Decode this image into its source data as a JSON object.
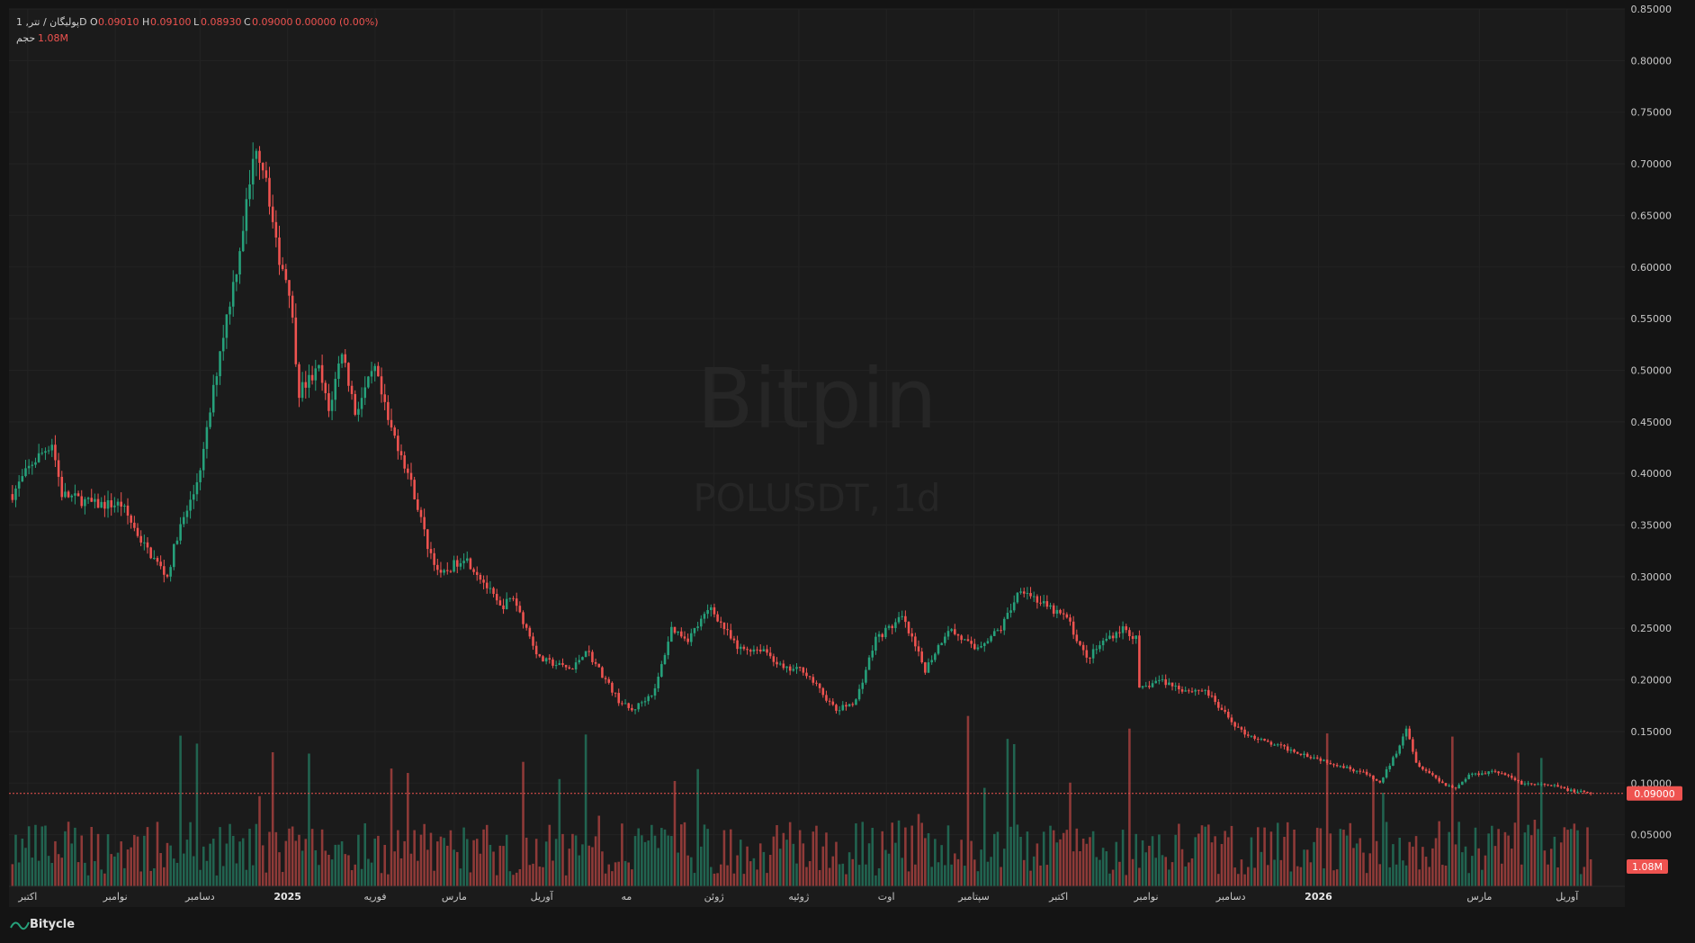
{
  "header": {
    "symbol_line": "پولیگان / تتر, 1D",
    "ohlc": {
      "o_label": "O",
      "o_value": "0.09010",
      "h_label": "H",
      "h_value": "0.09100",
      "l_label": "L",
      "l_value": "0.08930",
      "c_label": "C",
      "c_value": "0.09000",
      "change": "0.00000 (0.00%)"
    },
    "volume_label": "حجم",
    "volume_value": "1.08M"
  },
  "watermark": {
    "brand": "Bitpin",
    "symbol": "POLUSDT, 1d"
  },
  "footer": {
    "brand": "Bitycle"
  },
  "colors": {
    "background": "#141414",
    "up": "#26a17b",
    "down": "#ef5350",
    "grid": "#232323",
    "text": "#c8c8c8"
  },
  "price_axis": {
    "ticks": [
      "0.85000",
      "0.80000",
      "0.75000",
      "0.70000",
      "0.65000",
      "0.60000",
      "0.55000",
      "0.50000",
      "0.45000",
      "0.40000",
      "0.35000",
      "0.30000",
      "0.25000",
      "0.20000",
      "0.15000",
      "0.10000",
      "0.05000"
    ],
    "last_price_label": "0.09000",
    "volume_label": "1.08M"
  },
  "time_axis": {
    "labels": [
      "اکتبر",
      "نوامبر",
      "دسامبر",
      "2025",
      "فوریه",
      "مارس",
      "آوریل",
      "مه",
      "ژوئن",
      "ژوئیه",
      "اوت",
      "سپتامبر",
      "اکتبر",
      "نوامبر",
      "دسامبر",
      "2026",
      "مارس",
      "آوریل"
    ]
  },
  "chart_data": {
    "type": "candlestick",
    "symbol": "POLUSDT",
    "interval": "1d",
    "ylim": [
      0.0,
      0.85
    ],
    "last_close": 0.09,
    "volume_last": "1.08M",
    "grid": true,
    "daily_path": {
      "month_index_start": [
        "Sep-2024 end",
        "Oct-2024",
        "Nov-2024",
        "Dec-2024",
        "Jan-2025",
        "Feb-2025",
        "Mar-2025",
        "Apr-2025",
        "May-2025",
        "Jun-2025",
        "Jul-2025",
        "Aug-2025",
        "Sep-2025",
        "Oct-2025",
        "Nov-2025",
        "Dec-2025",
        "Jan-2026",
        "Feb-2026",
        "Mar-2026",
        "Apr-2026"
      ],
      "anchors": [
        [
          0,
          0.38
        ],
        [
          6,
          0.41
        ],
        [
          12,
          0.43
        ],
        [
          15,
          0.38
        ],
        [
          25,
          0.37
        ],
        [
          33,
          0.37
        ],
        [
          40,
          0.33
        ],
        [
          47,
          0.3
        ],
        [
          50,
          0.34
        ],
        [
          55,
          0.38
        ],
        [
          58,
          0.42
        ],
        [
          63,
          0.52
        ],
        [
          68,
          0.6
        ],
        [
          72,
          0.68
        ],
        [
          74,
          0.72
        ],
        [
          77,
          0.69
        ],
        [
          80,
          0.62
        ],
        [
          84,
          0.58
        ],
        [
          87,
          0.48
        ],
        [
          93,
          0.5
        ],
        [
          96,
          0.46
        ],
        [
          100,
          0.52
        ],
        [
          104,
          0.46
        ],
        [
          110,
          0.5
        ],
        [
          114,
          0.45
        ],
        [
          118,
          0.42
        ],
        [
          122,
          0.38
        ],
        [
          126,
          0.33
        ],
        [
          130,
          0.3
        ],
        [
          137,
          0.32
        ],
        [
          142,
          0.3
        ],
        [
          148,
          0.27
        ],
        [
          152,
          0.28
        ],
        [
          156,
          0.25
        ],
        [
          160,
          0.22
        ],
        [
          170,
          0.21
        ],
        [
          174,
          0.23
        ],
        [
          178,
          0.21
        ],
        [
          184,
          0.18
        ],
        [
          188,
          0.17
        ],
        [
          195,
          0.19
        ],
        [
          200,
          0.25
        ],
        [
          205,
          0.24
        ],
        [
          212,
          0.27
        ],
        [
          220,
          0.23
        ],
        [
          228,
          0.23
        ],
        [
          234,
          0.21
        ],
        [
          240,
          0.21
        ],
        [
          245,
          0.19
        ],
        [
          250,
          0.17
        ],
        [
          256,
          0.18
        ],
        [
          262,
          0.24
        ],
        [
          270,
          0.26
        ],
        [
          277,
          0.21
        ],
        [
          284,
          0.25
        ],
        [
          292,
          0.23
        ],
        [
          300,
          0.25
        ],
        [
          306,
          0.29
        ],
        [
          314,
          0.27
        ],
        [
          320,
          0.26
        ],
        [
          326,
          0.22
        ],
        [
          332,
          0.24
        ],
        [
          337,
          0.25
        ],
        [
          341,
          0.24
        ],
        [
          342,
          0.19
        ],
        [
          348,
          0.2
        ],
        [
          356,
          0.19
        ],
        [
          362,
          0.19
        ],
        [
          367,
          0.17
        ],
        [
          373,
          0.15
        ],
        [
          380,
          0.14
        ],
        [
          390,
          0.13
        ],
        [
          400,
          0.12
        ],
        [
          410,
          0.11
        ],
        [
          415,
          0.1
        ],
        [
          420,
          0.13
        ],
        [
          423,
          0.155
        ],
        [
          426,
          0.12
        ],
        [
          430,
          0.11
        ],
        [
          434,
          0.1
        ],
        [
          438,
          0.095
        ],
        [
          442,
          0.108
        ],
        [
          450,
          0.112
        ],
        [
          458,
          0.1
        ],
        [
          468,
          0.097
        ],
        [
          474,
          0.092
        ],
        [
          479,
          0.09
        ]
      ]
    }
  }
}
